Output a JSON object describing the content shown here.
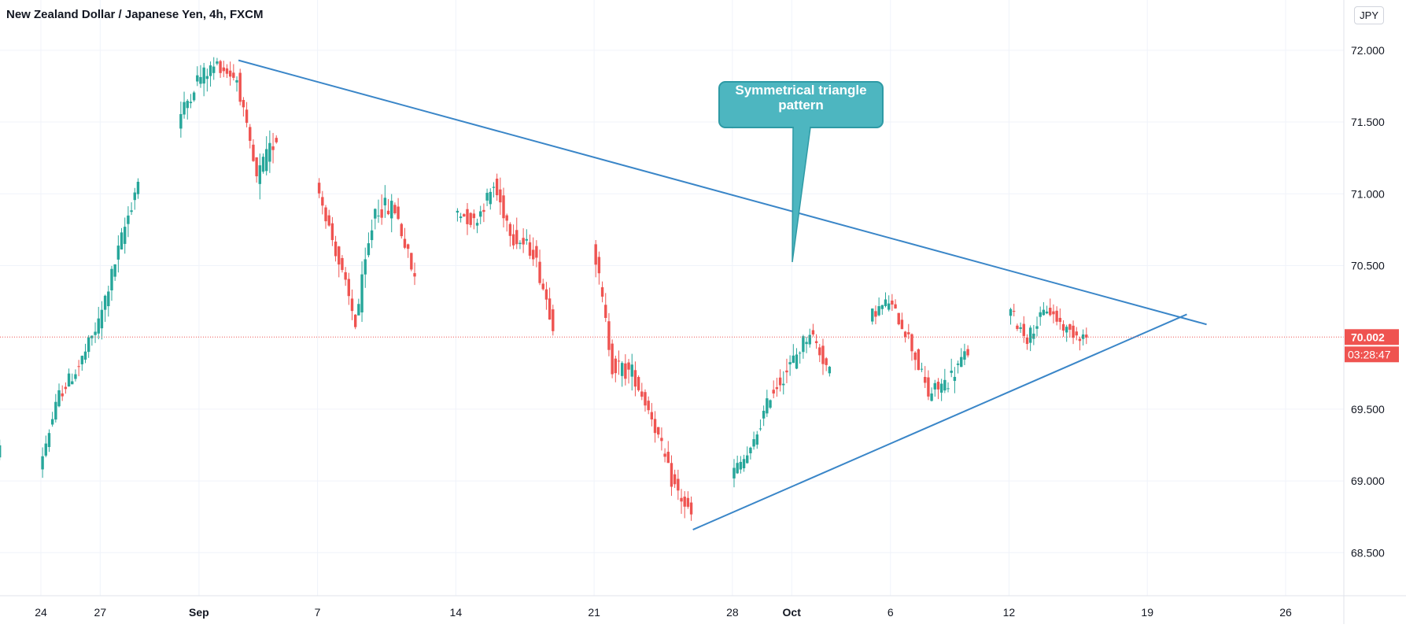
{
  "header": {
    "symbol_title": "New Zealand Dollar / Japanese Yen, 4h, FXCM",
    "currency_button": "JPY"
  },
  "colors": {
    "up": "#26a69a",
    "down": "#ef5350",
    "trendline": "#3a86c8",
    "annotation_bg": "#4db6c0",
    "annotation_border": "#2e9aa5",
    "price_label": "#ef5350",
    "grid": "#f0f3fa"
  },
  "chart_data": {
    "type": "candlestick",
    "interval": "4h",
    "ylim": [
      68.2,
      72.35
    ],
    "y_ticks": [
      "72.000",
      "71.500",
      "71.000",
      "70.500",
      "70.002",
      "69.500",
      "69.000",
      "68.500"
    ],
    "x_ticks": [
      "24",
      "27",
      "Sep",
      "7",
      "14",
      "21",
      "28",
      "Oct",
      "6",
      "12",
      "19",
      "26"
    ],
    "current_price": "70.002",
    "countdown": "03:28:47",
    "annotation": {
      "text": "Symmetrical triangle pattern"
    },
    "trendlines": [
      {
        "name": "upper",
        "from": {
          "date": "Sep 3",
          "price": 71.93
        },
        "to": {
          "date": "Oct 22",
          "price": 70.09
        }
      },
      {
        "name": "lower",
        "from": {
          "date": "Sep 26",
          "price": 68.66
        },
        "to": {
          "date": "Oct 21",
          "price": 70.16
        }
      }
    ],
    "daily_path": [
      {
        "date": "Aug 21",
        "close": 68.9,
        "vol": 0.12
      },
      {
        "date": "Aug 22",
        "close": 69.25,
        "vol": 0.15
      },
      {
        "date": "Aug 23",
        "close": 69.35,
        "vol": 0.15
      },
      {
        "date": "Aug 24",
        "close": 69.1,
        "vol": 0.15
      },
      {
        "date": "Aug 25",
        "close": 69.6,
        "vol": 0.18
      },
      {
        "date": "Aug 26",
        "close": 69.8,
        "vol": 0.18
      },
      {
        "date": "Aug 27",
        "close": 70.1,
        "vol": 0.2
      },
      {
        "date": "Aug 28",
        "close": 70.6,
        "vol": 0.22
      },
      {
        "date": "Aug 29",
        "close": 71.1,
        "vol": 0.25
      },
      {
        "date": "Aug 30",
        "close": 71.4,
        "vol": 0.2
      },
      {
        "date": "Aug 31",
        "close": 71.5,
        "vol": 0.2
      },
      {
        "date": "Sep 1",
        "close": 71.8,
        "vol": 0.2
      },
      {
        "date": "Sep 2",
        "close": 71.9,
        "vol": 0.15
      },
      {
        "date": "Sep 3",
        "close": 71.8,
        "vol": 0.15
      },
      {
        "date": "Sep 4",
        "close": 71.1,
        "vol": 0.25
      },
      {
        "date": "Sep 5",
        "close": 71.4,
        "vol": 0.2
      },
      {
        "date": "Sep 6",
        "close": 71.2,
        "vol": 0.18
      },
      {
        "date": "Sep 7",
        "close": 71.1,
        "vol": 0.15
      },
      {
        "date": "Sep 8",
        "close": 70.6,
        "vol": 0.2
      },
      {
        "date": "Sep 9",
        "close": 70.1,
        "vol": 0.25
      },
      {
        "date": "Sep 10",
        "close": 70.9,
        "vol": 0.25
      },
      {
        "date": "Sep 11",
        "close": 70.9,
        "vol": 0.2
      },
      {
        "date": "Sep 12",
        "close": 70.4,
        "vol": 0.2
      },
      {
        "date": "Sep 13",
        "close": 70.6,
        "vol": 0.15
      },
      {
        "date": "Sep 14",
        "close": 70.9,
        "vol": 0.18
      },
      {
        "date": "Sep 15",
        "close": 70.8,
        "vol": 0.18
      },
      {
        "date": "Sep 16",
        "close": 71.05,
        "vol": 0.2
      },
      {
        "date": "Sep 17",
        "close": 70.7,
        "vol": 0.2
      },
      {
        "date": "Sep 18",
        "close": 70.6,
        "vol": 0.2
      },
      {
        "date": "Sep 19",
        "close": 70.1,
        "vol": 0.2
      },
      {
        "date": "Sep 20",
        "close": 70.55,
        "vol": 0.25
      },
      {
        "date": "Sep 21",
        "close": 70.7,
        "vol": 0.2
      },
      {
        "date": "Sep 22",
        "close": 69.8,
        "vol": 0.25
      },
      {
        "date": "Sep 23",
        "close": 69.75,
        "vol": 0.15
      },
      {
        "date": "Sep 24",
        "close": 69.45,
        "vol": 0.18
      },
      {
        "date": "Sep 25",
        "close": 69.0,
        "vol": 0.2
      },
      {
        "date": "Sep 26",
        "close": 68.75,
        "vol": 0.2
      },
      {
        "date": "Sep 27",
        "close": 69.1,
        "vol": 0.2
      },
      {
        "date": "Sep 28",
        "close": 69.05,
        "vol": 0.15
      },
      {
        "date": "Sep 29",
        "close": 69.2,
        "vol": 0.15
      },
      {
        "date": "Sep 30",
        "close": 69.6,
        "vol": 0.2
      },
      {
        "date": "Oct 1",
        "close": 69.8,
        "vol": 0.2
      },
      {
        "date": "Oct 2",
        "close": 70.05,
        "vol": 0.18
      },
      {
        "date": "Oct 3",
        "close": 69.75,
        "vol": 0.18
      },
      {
        "date": "Oct 4",
        "close": 69.9,
        "vol": 0.15
      },
      {
        "date": "Oct 5",
        "close": 70.15,
        "vol": 0.15
      },
      {
        "date": "Oct 6",
        "close": 70.25,
        "vol": 0.15
      },
      {
        "date": "Oct 7",
        "close": 70.0,
        "vol": 0.2
      },
      {
        "date": "Oct 8",
        "close": 69.6,
        "vol": 0.2
      },
      {
        "date": "Oct 9",
        "close": 69.7,
        "vol": 0.2
      },
      {
        "date": "Oct 10",
        "close": 69.9,
        "vol": 0.18
      },
      {
        "date": "Oct 11",
        "close": 70.45,
        "vol": 0.2
      },
      {
        "date": "Oct 12",
        "close": 70.2,
        "vol": 0.18
      },
      {
        "date": "Oct 13",
        "close": 70.0,
        "vol": 0.15
      },
      {
        "date": "Oct 14",
        "close": 70.2,
        "vol": 0.15
      },
      {
        "date": "Oct 15",
        "close": 70.05,
        "vol": 0.15
      },
      {
        "date": "Oct 16",
        "close": 70.0,
        "vol": 0.1
      }
    ]
  }
}
